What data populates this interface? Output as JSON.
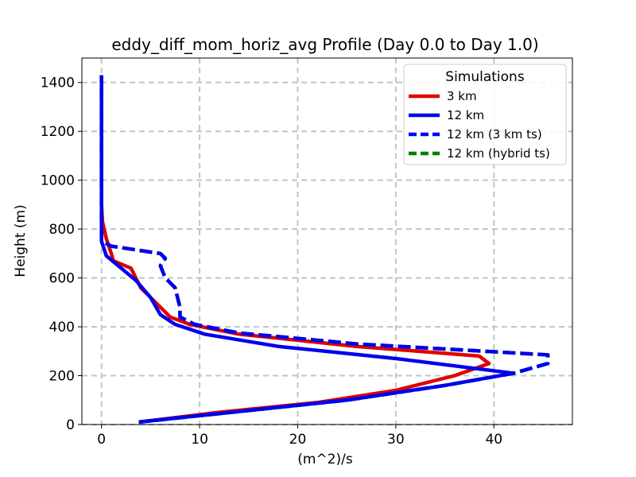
{
  "chart_data": {
    "type": "line",
    "title": "eddy_diff_mom_horiz_avg Profile (Day 0.0 to Day 1.0)",
    "xlabel": "(m^2)/s",
    "ylabel": "Height (m)",
    "xlim": [
      -2,
      48
    ],
    "ylim": [
      0,
      1500
    ],
    "xticks": [
      0,
      10,
      20,
      30,
      40
    ],
    "yticks": [
      0,
      200,
      400,
      600,
      800,
      1000,
      1200,
      1400
    ],
    "grid": true,
    "legend": {
      "title": "Simulations",
      "placement": "top-right"
    },
    "series": [
      {
        "name": "3 km",
        "color": "#e00000",
        "style": "solid",
        "points": [
          [
            3.8,
            10
          ],
          [
            12,
            50
          ],
          [
            22,
            90
          ],
          [
            30,
            140
          ],
          [
            36,
            200
          ],
          [
            39.5,
            250
          ],
          [
            38.5,
            280
          ],
          [
            26,
            320
          ],
          [
            14,
            370
          ],
          [
            9,
            410
          ],
          [
            7,
            440
          ],
          [
            5.5,
            500
          ],
          [
            4,
            560
          ],
          [
            3,
            640
          ],
          [
            1.2,
            670
          ],
          [
            1,
            700
          ],
          [
            0.5,
            760
          ],
          [
            0.1,
            830
          ],
          [
            0,
            900
          ],
          [
            0,
            1430
          ]
        ]
      },
      {
        "name": "12 km",
        "color": "#0000ee",
        "style": "solid",
        "points": [
          [
            3.8,
            10
          ],
          [
            12,
            45
          ],
          [
            25,
            100
          ],
          [
            35,
            160
          ],
          [
            42,
            210
          ],
          [
            30,
            270
          ],
          [
            18,
            320
          ],
          [
            10.5,
            370
          ],
          [
            7.5,
            410
          ],
          [
            6,
            450
          ],
          [
            5,
            520
          ],
          [
            3.5,
            590
          ],
          [
            2,
            640
          ],
          [
            0.5,
            690
          ],
          [
            0,
            750
          ],
          [
            0,
            1430
          ]
        ]
      },
      {
        "name": "12 km (3 km ts)",
        "color": "#0000ee",
        "style": "dashed",
        "points": [
          [
            3.8,
            10
          ],
          [
            12,
            45
          ],
          [
            25,
            100
          ],
          [
            35,
            160
          ],
          [
            42,
            210
          ],
          [
            45.5,
            250
          ],
          [
            45.5,
            285
          ],
          [
            26,
            330
          ],
          [
            14,
            375
          ],
          [
            9.5,
            410
          ],
          [
            8,
            440
          ],
          [
            8,
            480
          ],
          [
            7.5,
            560
          ],
          [
            6.5,
            600
          ],
          [
            6,
            650
          ],
          [
            6.5,
            680
          ],
          [
            6,
            700
          ],
          [
            1,
            730
          ],
          [
            0,
            750
          ],
          [
            0,
            1430
          ]
        ]
      },
      {
        "name": "12 km (hybrid ts)",
        "color": "#008000",
        "style": "dashed",
        "points": [
          [
            3.8,
            10
          ],
          [
            12,
            45
          ],
          [
            25,
            100
          ],
          [
            35,
            160
          ],
          [
            42,
            210
          ],
          [
            45.5,
            250
          ],
          [
            45.5,
            285
          ],
          [
            26,
            330
          ],
          [
            14,
            375
          ],
          [
            9.5,
            410
          ],
          [
            8,
            440
          ],
          [
            8,
            480
          ],
          [
            7.5,
            560
          ],
          [
            6.5,
            600
          ],
          [
            6,
            650
          ],
          [
            6.5,
            680
          ],
          [
            6,
            700
          ],
          [
            1,
            730
          ],
          [
            0,
            750
          ],
          [
            0,
            1430
          ]
        ]
      }
    ]
  }
}
